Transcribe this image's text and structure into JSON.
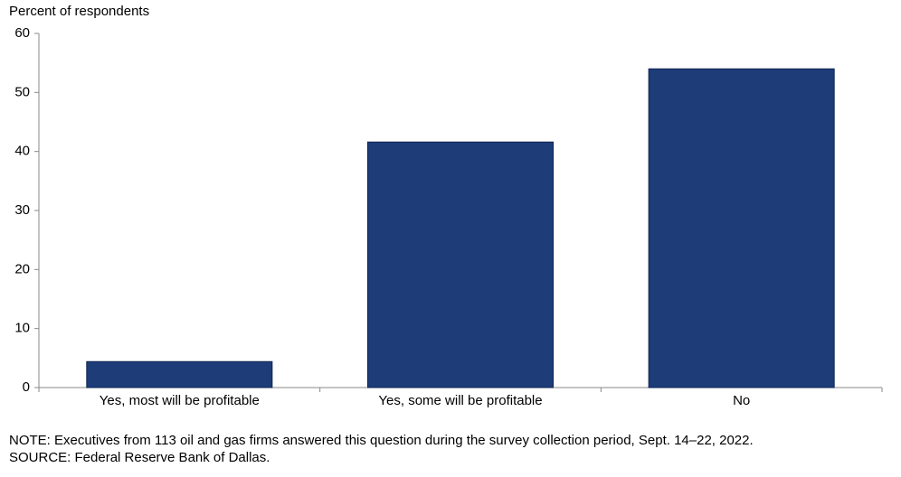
{
  "chart_data": {
    "type": "bar",
    "y_label": "Percent of respondents",
    "categories": [
      "Yes, most will be profitable",
      "Yes, some will be profitable",
      "No"
    ],
    "values": [
      4.4,
      41.6,
      54.0
    ],
    "color": "#1d3c78",
    "ylim": [
      0,
      60
    ],
    "yticks": [
      0,
      10,
      20,
      30,
      40,
      50,
      60
    ],
    "grid": false,
    "note": "NOTE:  Executives  from 113 oil and gas firms answered this question during the survey collection period, Sept. 14–22, 2022.",
    "source": "SOURCE:  Federal Reserve Bank of Dallas."
  }
}
